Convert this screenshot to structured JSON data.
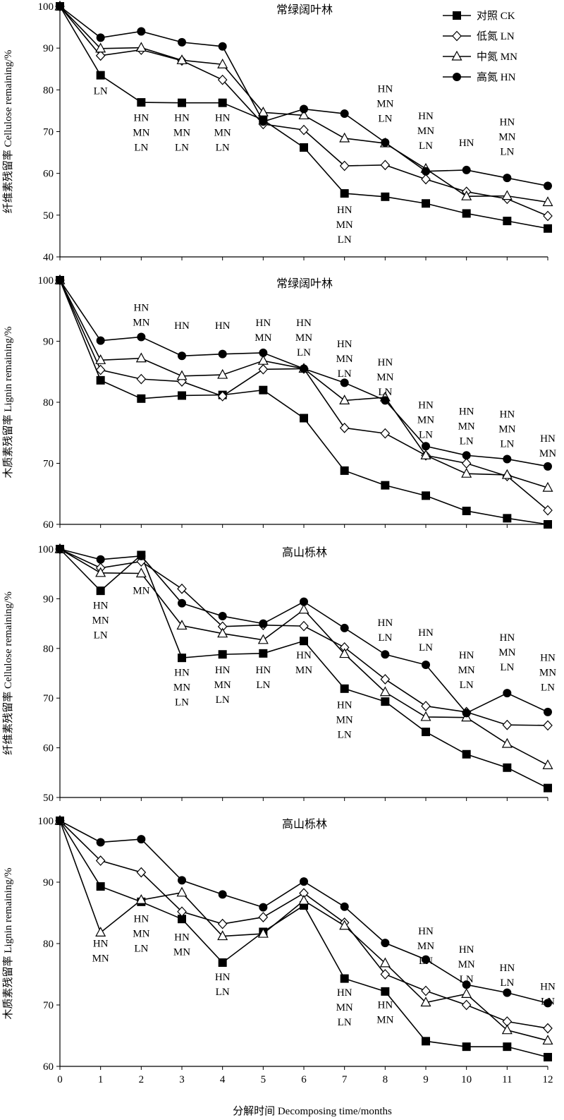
{
  "legend": {
    "position": "top-right",
    "entries": [
      {
        "label": "对照 CK",
        "marker": "square-filled"
      },
      {
        "label": "低氮 LN",
        "marker": "diamond-open"
      },
      {
        "label": "中氮 MN",
        "marker": "triangle-open"
      },
      {
        "label": "高氮 HN",
        "marker": "circle-filled"
      }
    ]
  },
  "shared_xlabel": "分解时间 Decomposing time/months",
  "x_ticks": [
    "0",
    "1",
    "2",
    "3",
    "4",
    "5",
    "6",
    "7",
    "8",
    "9",
    "10",
    "11",
    "12"
  ],
  "chart_data": [
    {
      "type": "line",
      "title": "常绿阔叶林",
      "ylabel": "纤维素残留率 Cellulose remaining/%",
      "xlim": [
        0,
        12
      ],
      "ylim": [
        40,
        100
      ],
      "yticks": [
        "40",
        "50",
        "60",
        "70",
        "80",
        "90",
        "100"
      ],
      "x": [
        0,
        1,
        2,
        3,
        4,
        5,
        6,
        7,
        8,
        9,
        10,
        11,
        12
      ],
      "series": [
        {
          "name": "对照 CK",
          "marker": "square-filled",
          "values": [
            100,
            83.5,
            77,
            76.9,
            76.9,
            72.8,
            66.2,
            55.2,
            54.4,
            52.8,
            50.4,
            48.6,
            46.8
          ]
        },
        {
          "name": "低氮 LN",
          "marker": "diamond-open",
          "values": [
            100,
            88.2,
            89.6,
            87,
            82.4,
            71.8,
            70.4,
            61.8,
            62,
            58.6,
            55.6,
            53.9,
            49.8
          ]
        },
        {
          "name": "中氮 MN",
          "marker": "triangle-open",
          "values": [
            100,
            89.9,
            90.1,
            87.1,
            86.1,
            74.6,
            73.9,
            68.4,
            67.2,
            61.1,
            54.5,
            54.6,
            53.1
          ]
        },
        {
          "name": "高氮 HN",
          "marker": "circle-filled",
          "values": [
            100,
            92.5,
            94,
            91.4,
            90.4,
            72.4,
            75.4,
            74.3,
            67.4,
            60.5,
            60.8,
            58.9,
            57
          ]
        }
      ],
      "annotations": [
        {
          "x": 1,
          "y": 79,
          "lines": [
            "LN"
          ]
        },
        {
          "x": 2,
          "y": 72.5,
          "lines": [
            "HN",
            "MN",
            "LN"
          ]
        },
        {
          "x": 3,
          "y": 72.5,
          "lines": [
            "HN",
            "MN",
            "LN"
          ]
        },
        {
          "x": 4,
          "y": 72.5,
          "lines": [
            "HN",
            "MN",
            "LN"
          ]
        },
        {
          "x": 7,
          "y": 50.5,
          "lines": [
            "HN",
            "MN",
            "LN"
          ]
        },
        {
          "x": 8,
          "y": 79.5,
          "lines": [
            "HN",
            "MN",
            "LN"
          ]
        },
        {
          "x": 9,
          "y": 73,
          "lines": [
            "HN",
            "MN",
            "LN"
          ]
        },
        {
          "x": 10,
          "y": 66.5,
          "lines": [
            "HN"
          ]
        },
        {
          "x": 11,
          "y": 71.5,
          "lines": [
            "HN",
            "MN",
            "LN"
          ]
        }
      ]
    },
    {
      "type": "line",
      "title": "常绿阔叶林",
      "ylabel": "木质素残留率 Lignin remaining/%",
      "xlim": [
        0,
        12
      ],
      "ylim": [
        60,
        100
      ],
      "yticks": [
        "60",
        "70",
        "80",
        "90",
        "100"
      ],
      "x": [
        0,
        1,
        2,
        3,
        4,
        5,
        6,
        7,
        8,
        9,
        10,
        11,
        12
      ],
      "series": [
        {
          "name": "对照 CK",
          "marker": "square-filled",
          "values": [
            100,
            83.6,
            80.6,
            81.1,
            81.2,
            82,
            77.4,
            68.8,
            66.4,
            64.7,
            62.2,
            61,
            60
          ]
        },
        {
          "name": "低氮 LN",
          "marker": "diamond-open",
          "values": [
            100,
            85.3,
            83.8,
            83.4,
            81,
            85.4,
            85.5,
            75.8,
            74.9,
            71.3,
            70,
            67.9,
            62.3
          ]
        },
        {
          "name": "中氮 MN",
          "marker": "triangle-open",
          "values": [
            100,
            86.9,
            87.2,
            84.3,
            84.5,
            86.8,
            85.5,
            80.3,
            80.8,
            71.3,
            68.3,
            68.1,
            66
          ]
        },
        {
          "name": "高氮 HN",
          "marker": "circle-filled",
          "values": [
            100,
            90.1,
            90.7,
            87.6,
            87.9,
            88.1,
            85.5,
            83.2,
            80.3,
            72.8,
            71.3,
            70.7,
            69.5
          ]
        }
      ],
      "annotations": [
        {
          "x": 2,
          "y": 95,
          "lines": [
            "HN",
            "MN"
          ]
        },
        {
          "x": 3,
          "y": 92,
          "lines": [
            "HN"
          ]
        },
        {
          "x": 4,
          "y": 92,
          "lines": [
            "HN"
          ]
        },
        {
          "x": 5,
          "y": 92.5,
          "lines": [
            "HN",
            "MN"
          ]
        },
        {
          "x": 6,
          "y": 92.5,
          "lines": [
            "HN",
            "MN",
            "LN"
          ]
        },
        {
          "x": 7,
          "y": 89,
          "lines": [
            "HN",
            "MN",
            "LN"
          ]
        },
        {
          "x": 8,
          "y": 86,
          "lines": [
            "HN",
            "MN",
            "LN"
          ]
        },
        {
          "x": 9,
          "y": 79,
          "lines": [
            "HN",
            "MN",
            "LN"
          ]
        },
        {
          "x": 10,
          "y": 78,
          "lines": [
            "HN",
            "MN",
            "LN"
          ]
        },
        {
          "x": 11,
          "y": 77.5,
          "lines": [
            "HN",
            "MN",
            "LN"
          ]
        },
        {
          "x": 12,
          "y": 73.5,
          "lines": [
            "HN",
            "MN"
          ]
        }
      ]
    },
    {
      "type": "line",
      "title": "高山栎林",
      "ylabel": "纤维素残留率 Cellulose remaining/%",
      "xlim": [
        0,
        12
      ],
      "ylim": [
        50,
        100
      ],
      "yticks": [
        "50",
        "60",
        "70",
        "80",
        "90",
        "100"
      ],
      "x": [
        0,
        1,
        2,
        3,
        4,
        5,
        6,
        7,
        8,
        9,
        10,
        11,
        12
      ],
      "series": [
        {
          "name": "对照 CK",
          "marker": "square-filled",
          "values": [
            100,
            91.6,
            98.8,
            78.1,
            78.8,
            79,
            81.5,
            71.9,
            69.3,
            63.2,
            58.7,
            56,
            51.9
          ]
        },
        {
          "name": "低氮 LN",
          "marker": "diamond-open",
          "values": [
            100,
            96.2,
            97.5,
            92,
            84.4,
            84.7,
            84.5,
            80.2,
            73.8,
            68.4,
            67.2,
            64.6,
            64.5
          ]
        },
        {
          "name": "中氮 MN",
          "marker": "triangle-open",
          "values": [
            100,
            95.2,
            95.1,
            84.6,
            83,
            81.7,
            87.8,
            78.9,
            71.2,
            66.2,
            66.1,
            60.8,
            56.5
          ]
        },
        {
          "name": "高氮 HN",
          "marker": "circle-filled",
          "values": [
            100,
            97.9,
            98.6,
            89.1,
            86.5,
            85,
            89.4,
            84.1,
            78.8,
            76.7,
            67,
            71,
            67.2
          ]
        }
      ],
      "annotations": [
        {
          "x": 1,
          "y": 88,
          "lines": [
            "HN",
            "MN",
            "LN"
          ]
        },
        {
          "x": 2,
          "y": 91,
          "lines": [
            "MN"
          ]
        },
        {
          "x": 3,
          "y": 74.5,
          "lines": [
            "HN",
            "MN",
            "LN"
          ]
        },
        {
          "x": 4,
          "y": 75,
          "lines": [
            "HN",
            "MN",
            "LN"
          ]
        },
        {
          "x": 5,
          "y": 75,
          "lines": [
            "HN",
            "LN"
          ]
        },
        {
          "x": 6,
          "y": 78,
          "lines": [
            "HN",
            "MN"
          ]
        },
        {
          "x": 7,
          "y": 68,
          "lines": [
            "HN",
            "MN",
            "LN"
          ]
        },
        {
          "x": 8,
          "y": 84.5,
          "lines": [
            "HN",
            "LN"
          ]
        },
        {
          "x": 9,
          "y": 82.5,
          "lines": [
            "HN",
            "LN"
          ]
        },
        {
          "x": 10,
          "y": 78,
          "lines": [
            "HN",
            "MN",
            "LN"
          ]
        },
        {
          "x": 11,
          "y": 81.5,
          "lines": [
            "HN",
            "MN",
            "LN"
          ]
        },
        {
          "x": 12,
          "y": 77.5,
          "lines": [
            "HN",
            "MN",
            "LN"
          ]
        }
      ]
    },
    {
      "type": "line",
      "title": "高山栎林",
      "ylabel": "木质素残留率 Lignin remaining/%",
      "xlim": [
        0,
        12
      ],
      "ylim": [
        60,
        100
      ],
      "yticks": [
        "60",
        "70",
        "80",
        "90",
        "100"
      ],
      "x": [
        0,
        1,
        2,
        3,
        4,
        5,
        6,
        7,
        8,
        9,
        10,
        11,
        12
      ],
      "series": [
        {
          "name": "对照 CK",
          "marker": "square-filled",
          "values": [
            100,
            89.3,
            86.8,
            84,
            76.9,
            81.9,
            86.2,
            74.3,
            72.2,
            64.1,
            63.2,
            63.2,
            61.5
          ]
        },
        {
          "name": "低氮 LN",
          "marker": "diamond-open",
          "values": [
            100,
            93.5,
            91.6,
            85.2,
            83.2,
            84.3,
            88.2,
            83.4,
            75,
            72.3,
            70,
            67.3,
            66.2
          ]
        },
        {
          "name": "中氮 MN",
          "marker": "triangle-open",
          "values": [
            100,
            81.8,
            87.1,
            88.3,
            81.2,
            81.6,
            87,
            82.9,
            76.8,
            70.4,
            71.8,
            65.9,
            64.2
          ]
        },
        {
          "name": "高氮 HN",
          "marker": "circle-filled",
          "values": [
            100,
            96.5,
            97,
            90.3,
            88,
            85.9,
            90.1,
            86,
            80.1,
            77.4,
            73.3,
            72,
            70.3
          ]
        }
      ],
      "annotations": [
        {
          "x": 1,
          "y": 79.5,
          "lines": [
            "HN",
            "MN"
          ]
        },
        {
          "x": 2,
          "y": 83.5,
          "lines": [
            "HN",
            "MN",
            "LN"
          ]
        },
        {
          "x": 3,
          "y": 80.5,
          "lines": [
            "HN",
            "MN"
          ]
        },
        {
          "x": 4,
          "y": 74,
          "lines": [
            "HN",
            "LN"
          ]
        },
        {
          "x": 7,
          "y": 71.5,
          "lines": [
            "HN",
            "MN",
            "LN"
          ]
        },
        {
          "x": 8,
          "y": 69.5,
          "lines": [
            "HN",
            "MN"
          ]
        },
        {
          "x": 9,
          "y": 81.5,
          "lines": [
            "HN",
            "MN",
            "LN"
          ]
        },
        {
          "x": 10,
          "y": 78.5,
          "lines": [
            "HN",
            "MN",
            "LN"
          ]
        },
        {
          "x": 11,
          "y": 75.5,
          "lines": [
            "HN",
            "LN"
          ]
        },
        {
          "x": 12,
          "y": 72.5,
          "lines": [
            "HN",
            "LN"
          ]
        }
      ]
    }
  ]
}
